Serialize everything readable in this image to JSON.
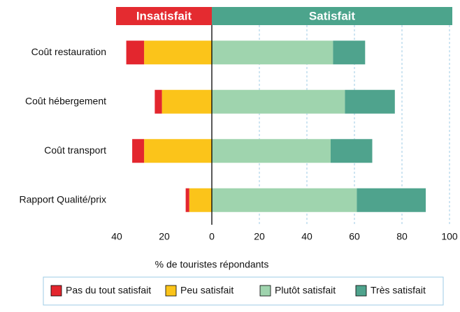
{
  "chart_data": {
    "type": "diverging_bar",
    "header_labels": [
      {
        "text": "Insatisfait",
        "color": "#e42b30"
      },
      {
        "text": "Satisfait",
        "color": "#4ca48c"
      }
    ],
    "categories": [
      "Coût restauration",
      "Coût hébergement",
      "Coût transport",
      "Rapport Qualité/prix"
    ],
    "series": [
      {
        "name": "Pas du tout satisfait",
        "color": "#e3262e",
        "values": [
          -7.5,
          -3,
          -5,
          -1.5
        ]
      },
      {
        "name": "Peu satisfait",
        "color": "#fbc41a",
        "values": [
          -28.5,
          -21,
          -28.5,
          -9.5
        ]
      },
      {
        "name": "Plutôt satisfait",
        "color": "#9fd4ae",
        "values": [
          51,
          56,
          50,
          61
        ]
      },
      {
        "name": "Très satisfait",
        "color": "#4fa38d",
        "values": [
          13.5,
          21,
          17.5,
          29
        ]
      }
    ],
    "xlabel": "% de touristes répondants",
    "xlim": [
      -40,
      100
    ],
    "xticks": [
      {
        "value": -40,
        "label": "40"
      },
      {
        "value": -20,
        "label": "20"
      },
      0,
      20,
      40,
      60,
      80,
      100
    ],
    "grid": true,
    "legend": "bottom"
  }
}
